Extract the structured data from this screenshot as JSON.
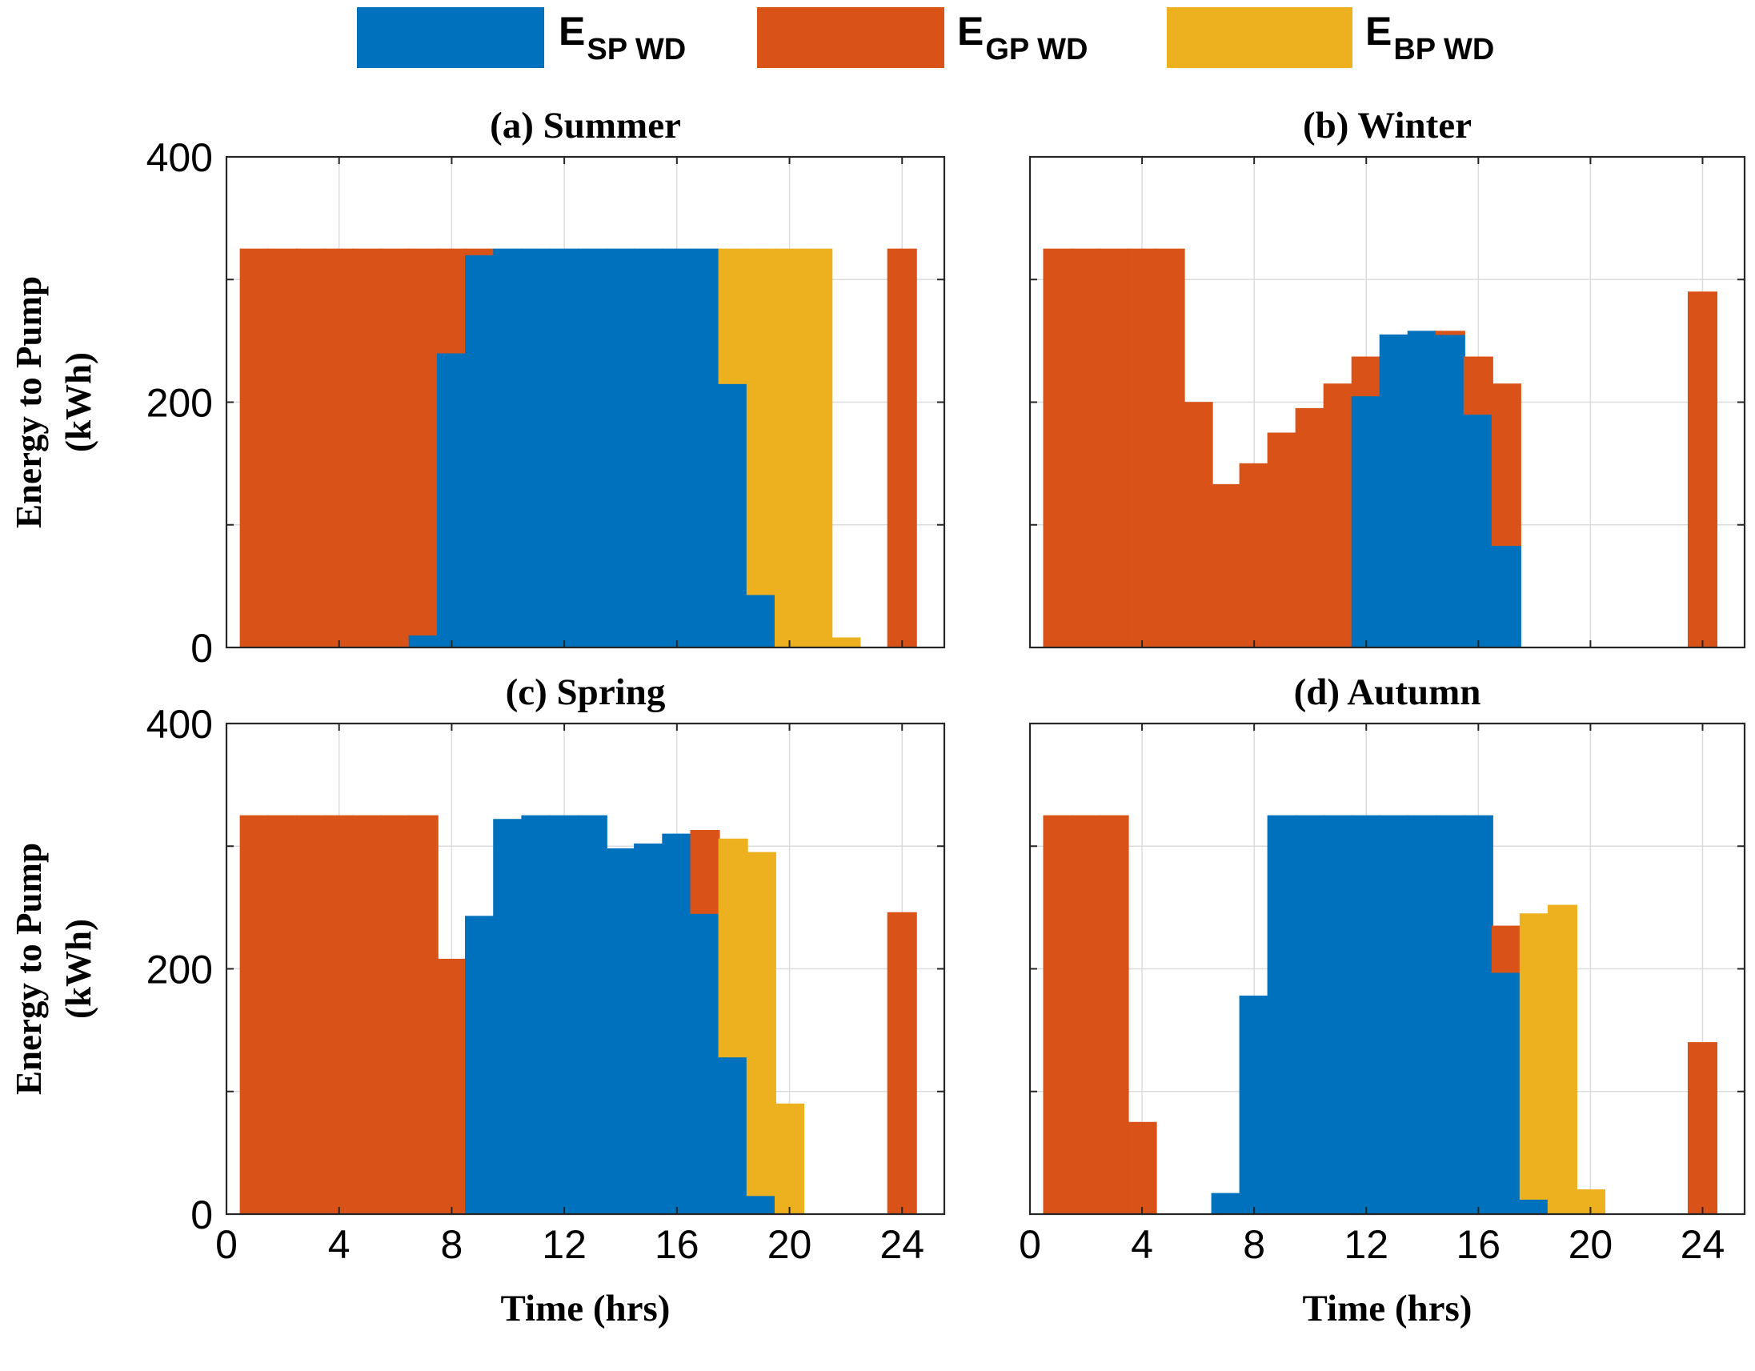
{
  "legend": [
    {
      "main": "E",
      "sub": "SP WD",
      "color": "#0072BD"
    },
    {
      "main": "E",
      "sub": "GP WD",
      "color": "#D95319"
    },
    {
      "main": "E",
      "sub": "BP WD",
      "color": "#EDB120"
    }
  ],
  "chart_data": [
    {
      "type": "bar",
      "stacked": true,
      "title": "(a) Summer",
      "xlabel": "",
      "ylabel": "Energy to Pump (kWh)",
      "ylabel_lines": [
        "Energy to Pump",
        "(kWh)"
      ],
      "xlim": [
        0,
        25.5
      ],
      "ylim": [
        0,
        400
      ],
      "xticks": [
        0,
        4,
        8,
        12,
        16,
        20,
        24
      ],
      "yticks": [
        0,
        200,
        400
      ],
      "show_xtick_labels": false,
      "show_ytick_labels": true,
      "grid": true,
      "hours": [
        1,
        2,
        3,
        4,
        5,
        6,
        7,
        8,
        9,
        10,
        11,
        12,
        13,
        14,
        15,
        16,
        17,
        18,
        19,
        20,
        21,
        22,
        23,
        24
      ],
      "series": [
        {
          "name": "E_SP WD",
          "values": [
            0,
            0,
            0,
            0,
            0,
            0,
            10,
            240,
            320,
            325,
            325,
            325,
            325,
            325,
            325,
            325,
            325,
            215,
            43,
            0,
            0,
            0,
            0,
            0
          ]
        },
        {
          "name": "E_GP WD",
          "values": [
            325,
            325,
            325,
            325,
            325,
            325,
            315,
            85,
            5,
            0,
            0,
            0,
            0,
            0,
            0,
            0,
            0,
            0,
            0,
            0,
            0,
            0,
            0,
            325
          ]
        },
        {
          "name": "E_BP WD",
          "values": [
            0,
            0,
            0,
            0,
            0,
            0,
            0,
            0,
            0,
            0,
            0,
            0,
            0,
            0,
            0,
            0,
            0,
            110,
            282,
            325,
            325,
            8,
            0,
            0
          ]
        }
      ]
    },
    {
      "type": "bar",
      "stacked": true,
      "title": "(b) Winter",
      "xlabel": "",
      "ylabel": "",
      "ylabel_lines": [],
      "xlim": [
        0,
        25.5
      ],
      "ylim": [
        0,
        400
      ],
      "xticks": [
        0,
        4,
        8,
        12,
        16,
        20,
        24
      ],
      "yticks": [
        0,
        200,
        400
      ],
      "show_xtick_labels": false,
      "show_ytick_labels": false,
      "grid": true,
      "hours": [
        1,
        2,
        3,
        4,
        5,
        6,
        7,
        8,
        9,
        10,
        11,
        12,
        13,
        14,
        15,
        16,
        17,
        18,
        19,
        20,
        21,
        22,
        23,
        24
      ],
      "series": [
        {
          "name": "E_SP WD",
          "values": [
            0,
            0,
            0,
            0,
            0,
            0,
            0,
            0,
            0,
            0,
            0,
            205,
            255,
            258,
            255,
            190,
            83,
            0,
            0,
            0,
            0,
            0,
            0,
            0
          ]
        },
        {
          "name": "E_GP WD",
          "values": [
            325,
            325,
            325,
            325,
            325,
            200,
            133,
            150,
            175,
            195,
            215,
            32,
            0,
            0,
            3,
            47,
            132,
            0,
            0,
            0,
            0,
            0,
            0,
            290
          ]
        },
        {
          "name": "E_BP WD",
          "values": [
            0,
            0,
            0,
            0,
            0,
            0,
            0,
            0,
            0,
            0,
            0,
            0,
            0,
            0,
            0,
            0,
            0,
            0,
            0,
            0,
            0,
            0,
            0,
            0
          ]
        }
      ]
    },
    {
      "type": "bar",
      "stacked": true,
      "title": "(c) Spring",
      "xlabel": "Time (hrs)",
      "ylabel": "Energy to Pump (kWh)",
      "ylabel_lines": [
        "Energy to Pump",
        "(kWh)"
      ],
      "xlim": [
        0,
        25.5
      ],
      "ylim": [
        0,
        400
      ],
      "xticks": [
        0,
        4,
        8,
        12,
        16,
        20,
        24
      ],
      "yticks": [
        0,
        200,
        400
      ],
      "show_xtick_labels": true,
      "show_ytick_labels": true,
      "grid": true,
      "hours": [
        1,
        2,
        3,
        4,
        5,
        6,
        7,
        8,
        9,
        10,
        11,
        12,
        13,
        14,
        15,
        16,
        17,
        18,
        19,
        20,
        21,
        22,
        23,
        24
      ],
      "series": [
        {
          "name": "E_SP WD",
          "values": [
            0,
            0,
            0,
            0,
            0,
            0,
            0,
            0,
            243,
            322,
            325,
            325,
            325,
            298,
            302,
            310,
            245,
            128,
            15,
            0,
            0,
            0,
            0,
            0
          ]
        },
        {
          "name": "E_GP WD",
          "values": [
            325,
            325,
            325,
            325,
            325,
            325,
            325,
            208,
            0,
            0,
            0,
            0,
            0,
            0,
            0,
            0,
            68,
            0,
            0,
            0,
            0,
            0,
            0,
            246
          ]
        },
        {
          "name": "E_BP WD",
          "values": [
            0,
            0,
            0,
            0,
            0,
            0,
            0,
            0,
            0,
            0,
            0,
            0,
            0,
            0,
            0,
            0,
            0,
            178,
            280,
            90,
            0,
            0,
            0,
            0
          ]
        }
      ]
    },
    {
      "type": "bar",
      "stacked": true,
      "title": "(d) Autumn",
      "xlabel": "Time (hrs)",
      "ylabel": "",
      "ylabel_lines": [],
      "xlim": [
        0,
        25.5
      ],
      "ylim": [
        0,
        400
      ],
      "xticks": [
        0,
        4,
        8,
        12,
        16,
        20,
        24
      ],
      "yticks": [
        0,
        200,
        400
      ],
      "show_xtick_labels": true,
      "show_ytick_labels": false,
      "grid": true,
      "hours": [
        1,
        2,
        3,
        4,
        5,
        6,
        7,
        8,
        9,
        10,
        11,
        12,
        13,
        14,
        15,
        16,
        17,
        18,
        19,
        20,
        21,
        22,
        23,
        24
      ],
      "series": [
        {
          "name": "E_SP WD",
          "values": [
            0,
            0,
            0,
            0,
            0,
            0,
            17,
            178,
            325,
            325,
            325,
            325,
            325,
            325,
            325,
            325,
            197,
            12,
            0,
            0,
            0,
            0,
            0,
            0
          ]
        },
        {
          "name": "E_GP WD",
          "values": [
            325,
            325,
            325,
            75,
            0,
            0,
            0,
            0,
            0,
            0,
            0,
            0,
            0,
            0,
            0,
            0,
            38,
            0,
            0,
            0,
            0,
            0,
            0,
            140
          ]
        },
        {
          "name": "E_BP WD",
          "values": [
            0,
            0,
            0,
            0,
            0,
            0,
            0,
            0,
            0,
            0,
            0,
            0,
            0,
            0,
            0,
            0,
            0,
            233,
            252,
            20,
            0,
            0,
            0,
            0
          ]
        }
      ]
    }
  ]
}
